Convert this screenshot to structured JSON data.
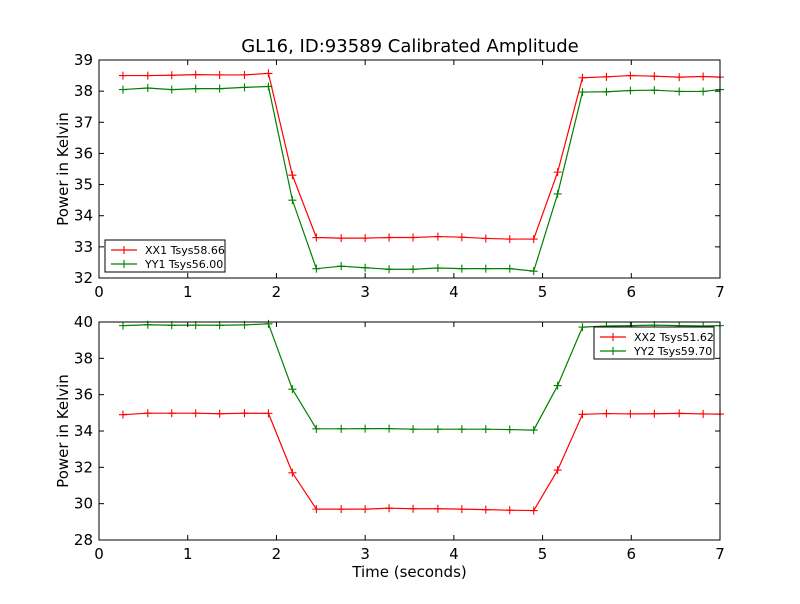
{
  "title": "GL16, ID:93589 Calibrated Amplitude",
  "chart_data": [
    {
      "type": "line",
      "title": "GL16, ID:93589 Calibrated Amplitude",
      "xlabel": "",
      "ylabel": "Power in Kelvin",
      "xlim": [
        0,
        7
      ],
      "ylim": [
        32,
        39
      ],
      "xticks": [
        0,
        1,
        2,
        3,
        4,
        5,
        6,
        7
      ],
      "yticks": [
        32,
        33,
        34,
        35,
        36,
        37,
        38,
        39
      ],
      "grid": false,
      "legend": "lower-left",
      "x": [
        0.27,
        0.55,
        0.82,
        1.09,
        1.36,
        1.64,
        1.91,
        2.18,
        2.45,
        2.73,
        3.0,
        3.27,
        3.54,
        3.82,
        4.09,
        4.36,
        4.63,
        4.9,
        5.17,
        5.45,
        5.72,
        5.99,
        6.26,
        6.54,
        6.81,
        7.0
      ],
      "series": [
        {
          "name": "XX1 Tsys58.66",
          "color": "#ff0000",
          "values": [
            38.5,
            38.5,
            38.51,
            38.53,
            38.52,
            38.52,
            38.57,
            35.3,
            33.3,
            33.28,
            33.28,
            33.3,
            33.3,
            33.33,
            33.31,
            33.27,
            33.25,
            33.25,
            35.4,
            38.43,
            38.46,
            38.5,
            38.48,
            38.45,
            38.47,
            38.45
          ]
        },
        {
          "name": "YY1 Tsys56.00",
          "color": "#008000",
          "values": [
            38.05,
            38.1,
            38.05,
            38.08,
            38.08,
            38.12,
            38.15,
            34.5,
            32.3,
            32.38,
            32.33,
            32.28,
            32.28,
            32.32,
            32.3,
            32.3,
            32.3,
            32.22,
            34.7,
            37.97,
            37.98,
            38.02,
            38.03,
            37.99,
            37.99,
            38.05
          ]
        }
      ]
    },
    {
      "type": "line",
      "title": "",
      "xlabel": "Time (seconds)",
      "ylabel": "Power in Kelvin",
      "xlim": [
        0,
        7
      ],
      "ylim": [
        28,
        40
      ],
      "xticks": [
        0,
        1,
        2,
        3,
        4,
        5,
        6,
        7
      ],
      "yticks": [
        28,
        30,
        32,
        34,
        36,
        38,
        40
      ],
      "grid": false,
      "legend": "upper-right",
      "x": [
        0.27,
        0.55,
        0.82,
        1.09,
        1.36,
        1.64,
        1.91,
        2.18,
        2.45,
        2.73,
        3.0,
        3.27,
        3.54,
        3.82,
        4.09,
        4.36,
        4.63,
        4.9,
        5.17,
        5.45,
        5.72,
        5.99,
        6.26,
        6.54,
        6.81,
        7.0
      ],
      "series": [
        {
          "name": "XX2 Tsys51.62",
          "color": "#ff0000",
          "values": [
            34.9,
            34.98,
            34.98,
            34.98,
            34.95,
            34.98,
            34.97,
            31.7,
            29.7,
            29.7,
            29.7,
            29.75,
            29.72,
            29.72,
            29.7,
            29.67,
            29.64,
            29.62,
            31.85,
            34.92,
            34.96,
            34.94,
            34.95,
            34.97,
            34.94,
            34.93
          ]
        },
        {
          "name": "YY2 Tsys59.70",
          "color": "#008000",
          "values": [
            39.8,
            39.85,
            39.82,
            39.83,
            39.82,
            39.84,
            39.9,
            36.3,
            34.12,
            34.12,
            34.13,
            34.13,
            34.1,
            34.1,
            34.1,
            34.1,
            34.08,
            34.05,
            36.5,
            39.72,
            39.78,
            39.8,
            39.83,
            39.8,
            39.78,
            39.8
          ]
        }
      ]
    }
  ]
}
